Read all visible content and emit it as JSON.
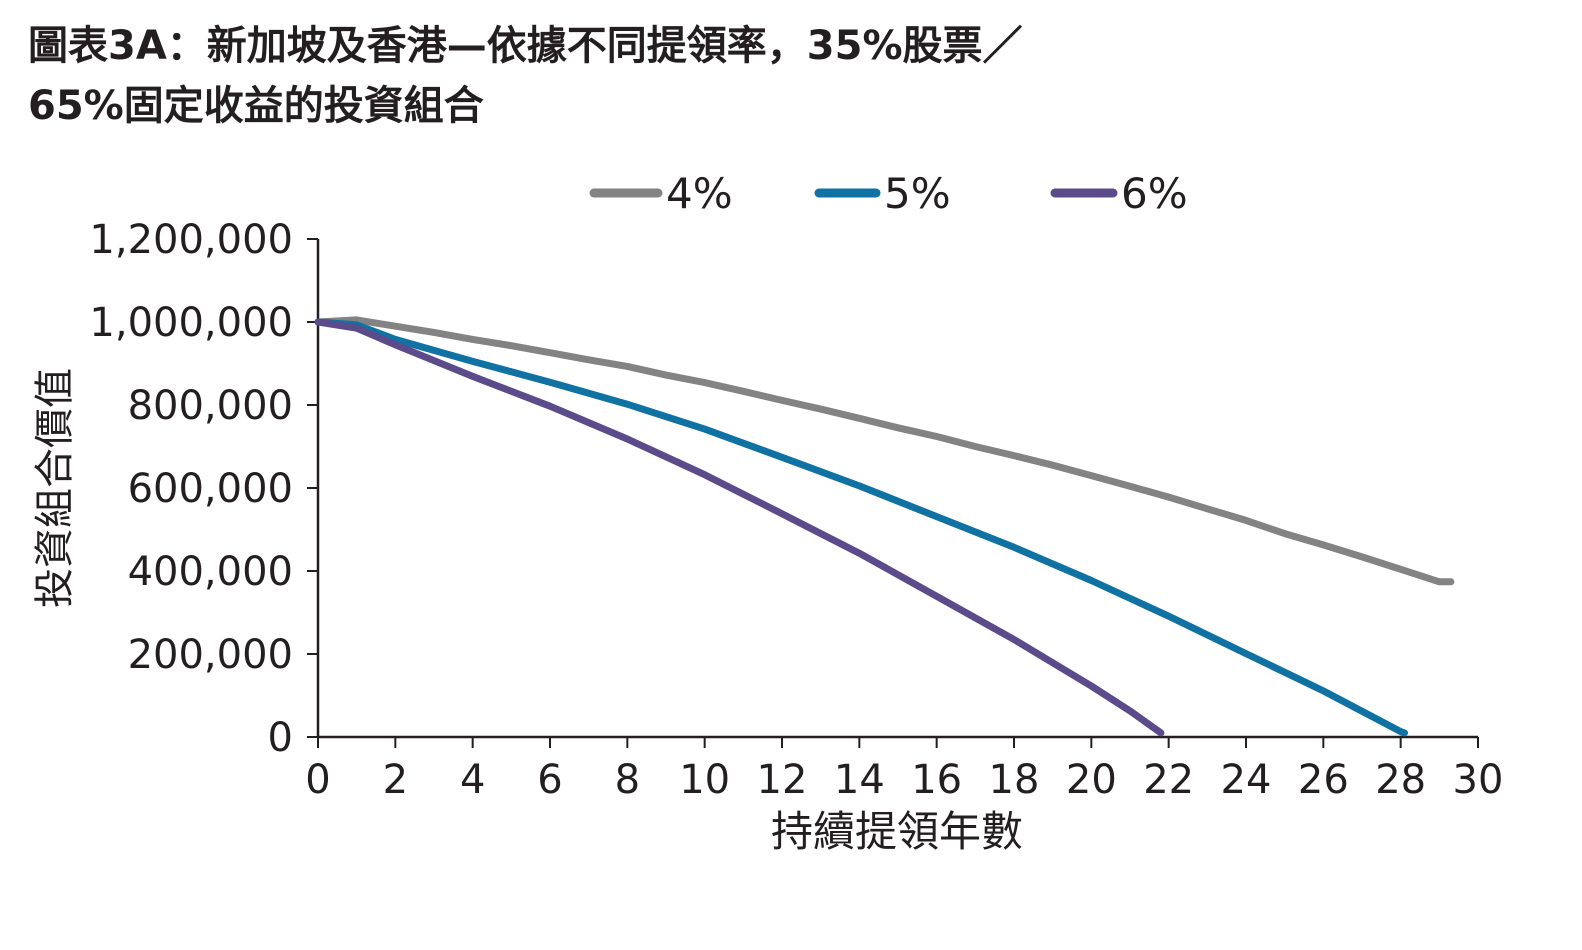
{
  "title": {
    "line1": "圖表3A：新加坡及香港—依據不同提領率，35%股票／",
    "line2": "65%固定收益的投資組合"
  },
  "chart_data": {
    "type": "line",
    "xlabel": "持續提領年數",
    "ylabel": "投資組合價值",
    "xlim": [
      0,
      30
    ],
    "ylim": [
      0,
      1200000
    ],
    "x_ticks": [
      "0",
      "2",
      "4",
      "6",
      "8",
      "10",
      "12",
      "14",
      "16",
      "18",
      "20",
      "22",
      "24",
      "26",
      "28",
      "30"
    ],
    "y_ticks": [
      "0",
      "200,000",
      "400,000",
      "600,000",
      "800,000",
      "1,000,000",
      "1,200,000"
    ],
    "legend_position": "top",
    "series": [
      {
        "name": "4%",
        "color": "#838383",
        "x": [
          0,
          1,
          2,
          3,
          4,
          5,
          6,
          7,
          8,
          9,
          10,
          11,
          12,
          13,
          14,
          15,
          16,
          17,
          18,
          19,
          20,
          21,
          22,
          23,
          24,
          25,
          26,
          27,
          28,
          29,
          29.3
        ],
        "y": [
          1000000,
          1005000,
          990000,
          975000,
          958000,
          943000,
          926000,
          909000,
          893000,
          872000,
          854000,
          833000,
          811000,
          790000,
          768000,
          745000,
          724000,
          700000,
          678000,
          655000,
          630000,
          604000,
          578000,
          550000,
          522000,
          490000,
          463000,
          434000,
          404000,
          374000,
          374000
        ]
      },
      {
        "name": "5%",
        "color": "#0f72a3",
        "x": [
          0,
          1,
          2,
          4,
          6,
          8,
          10,
          12,
          14,
          16,
          18,
          20,
          22,
          24,
          26,
          28,
          28.1
        ],
        "y": [
          1000000,
          993000,
          958000,
          905000,
          855000,
          802000,
          742000,
          674000,
          605000,
          531000,
          457000,
          377000,
          291000,
          201000,
          111000,
          13000,
          10000
        ]
      },
      {
        "name": "6%",
        "color": "#5b4b8a",
        "x": [
          0,
          1,
          2,
          4,
          6,
          8,
          10,
          12,
          14,
          16,
          18,
          20,
          21,
          21.8
        ],
        "y": [
          1000000,
          985000,
          945000,
          869000,
          797000,
          718000,
          632000,
          538000,
          443000,
          339000,
          235000,
          123000,
          63000,
          10000
        ]
      }
    ]
  }
}
